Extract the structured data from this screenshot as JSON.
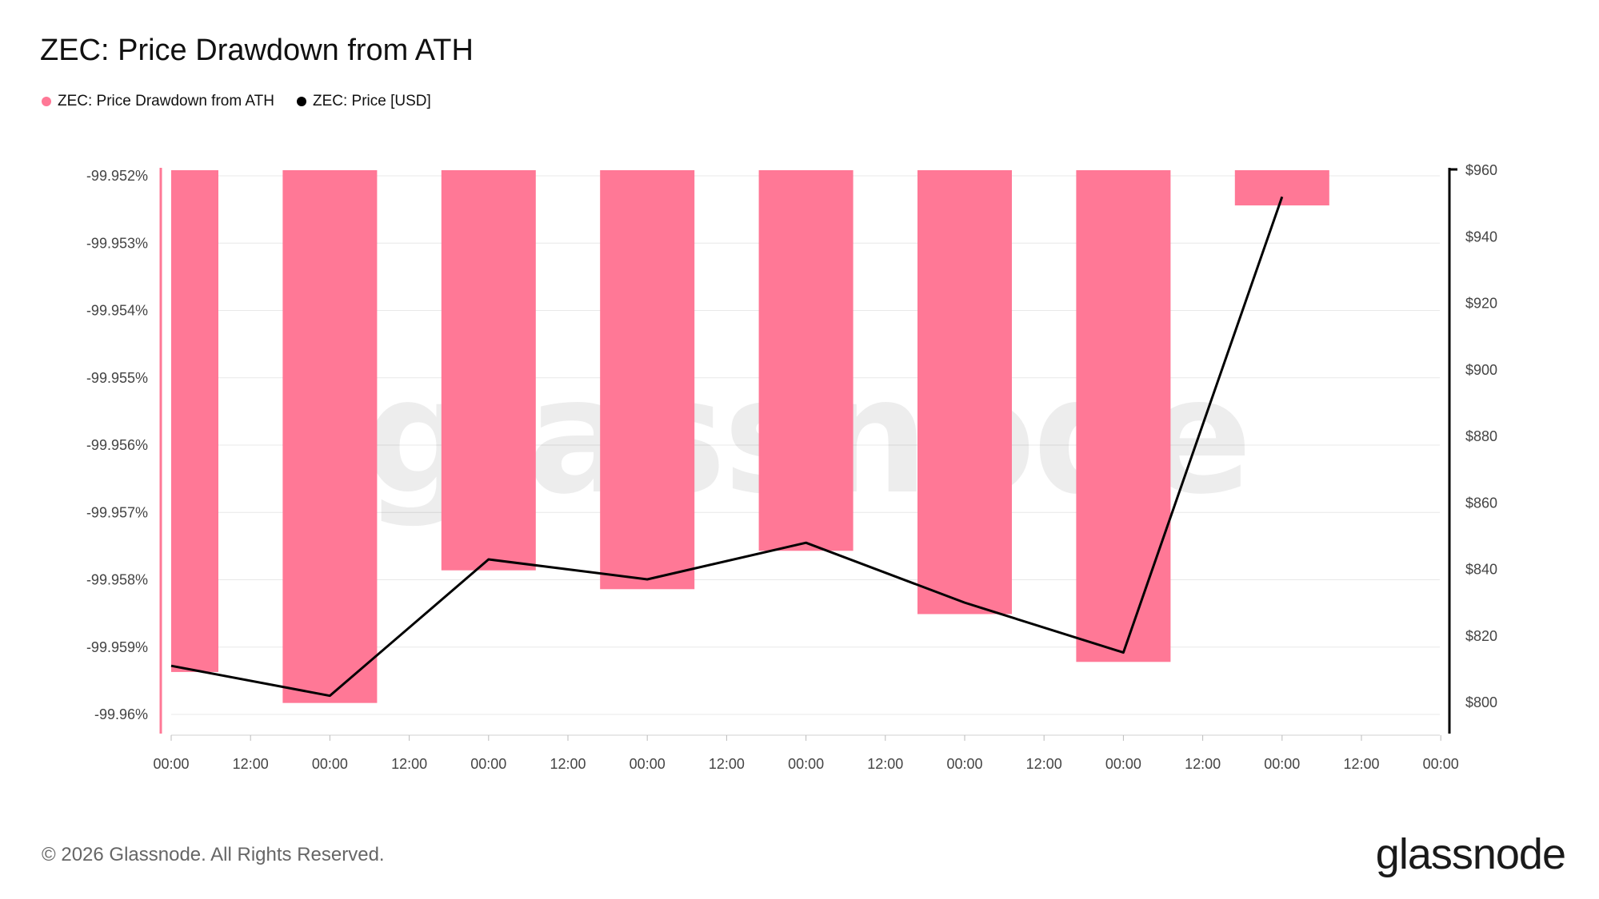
{
  "title": "ZEC: Price Drawdown from ATH",
  "legend": [
    {
      "label": "ZEC: Price Drawdown from ATH",
      "color": "#ff7896",
      "icon": "circle"
    },
    {
      "label": "ZEC: Price [USD]",
      "color": "#000000",
      "icon": "circle"
    }
  ],
  "watermark": "glassnode",
  "footer": "© 2026 Glassnode. All Rights Reserved.",
  "brand": "glassnode",
  "chart_data": {
    "type": "bar",
    "x_tick_labels": [
      "00:00",
      "12:00",
      "00:00",
      "12:00",
      "00:00",
      "12:00",
      "00:00",
      "12:00",
      "00:00",
      "12:00",
      "00:00",
      "12:00",
      "00:00",
      "12:00",
      "00:00",
      "12:00",
      "00:00"
    ],
    "left_axis": {
      "ticks": [
        "-99.952%",
        "-99.953%",
        "-99.954%",
        "-99.955%",
        "-99.956%",
        "-99.957%",
        "-99.958%",
        "-99.959%",
        "-99.96%"
      ],
      "ylim": [
        -99.9603,
        -99.952
      ]
    },
    "right_axis": {
      "ticks": [
        "$960",
        "$940",
        "$920",
        "$900",
        "$880",
        "$860",
        "$840",
        "$820",
        "$800"
      ],
      "ylim": [
        794,
        960
      ]
    },
    "series": [
      {
        "name": "ZEC: Price Drawdown from ATH",
        "type": "bar",
        "axis": "left",
        "color": "#ff7896",
        "values": [
          -99.95937,
          -99.95983,
          -99.95786,
          -99.95814,
          -99.95757,
          -99.95851,
          -99.95922,
          -99.95244
        ]
      },
      {
        "name": "ZEC: Price [USD]",
        "type": "line",
        "axis": "right",
        "color": "#000000",
        "values": [
          811,
          802,
          843,
          837,
          848,
          830,
          815,
          952
        ]
      }
    ],
    "grid": true,
    "legend_position": "top-left"
  }
}
